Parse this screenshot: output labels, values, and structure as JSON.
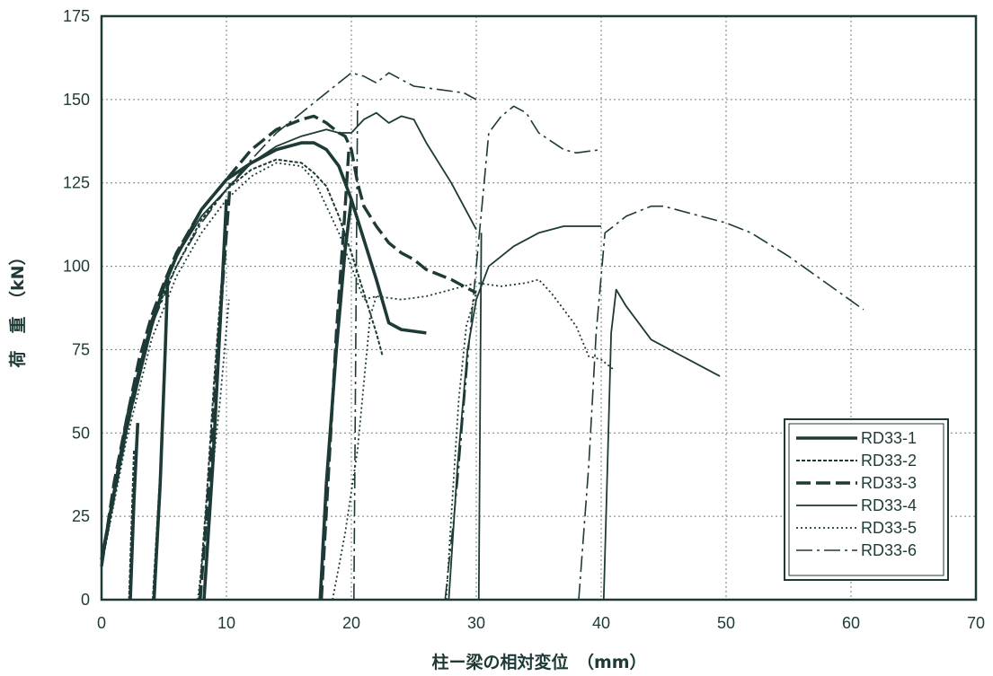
{
  "chart_data": {
    "type": "line",
    "xlabel": "柱ー梁の相対変位　（mm）",
    "ylabel": "荷　重　（kN）",
    "xlim": [
      0,
      70
    ],
    "ylim": [
      0,
      175
    ],
    "x_ticks": [
      "0",
      "10",
      "20",
      "30",
      "40",
      "50",
      "60",
      "70"
    ],
    "y_ticks": [
      "0",
      "25",
      "50",
      "75",
      "100",
      "125",
      "150",
      "175"
    ],
    "grid": true,
    "legend_position": "bottom-right",
    "line_color": "#1d3a36",
    "series": [
      {
        "name": "RD33-1",
        "style": "thick-solid",
        "points": [
          [
            0,
            12
          ],
          [
            1,
            32
          ],
          [
            2,
            52
          ],
          [
            3,
            67
          ],
          [
            4,
            82
          ],
          [
            5,
            94
          ],
          [
            6,
            103
          ],
          [
            8,
            117
          ],
          [
            10,
            126
          ],
          [
            12,
            131
          ],
          [
            14,
            135
          ],
          [
            16,
            137
          ],
          [
            17,
            137
          ],
          [
            18,
            135
          ],
          [
            19,
            130
          ],
          [
            20,
            120
          ],
          [
            21,
            108
          ],
          [
            22,
            96
          ],
          [
            23,
            83
          ],
          [
            24,
            81
          ],
          [
            26,
            80
          ],
          [
            17.5,
            0
          ],
          [
            18,
            35
          ],
          [
            18.8,
            75
          ],
          [
            19.5,
            105
          ],
          [
            20,
            120
          ],
          [
            2.3,
            0
          ],
          [
            2.6,
            30
          ],
          [
            2.9,
            53
          ],
          [
            4.2,
            0
          ],
          [
            4.7,
            35
          ],
          [
            5.1,
            75
          ],
          [
            5.3,
            97
          ],
          [
            8.2,
            0
          ],
          [
            8.9,
            40
          ],
          [
            9.6,
            90
          ],
          [
            10,
            120
          ]
        ]
      },
      {
        "name": "RD33-2",
        "style": "short-dash",
        "points": [
          [
            0,
            10
          ],
          [
            1,
            30
          ],
          [
            2,
            50
          ],
          [
            3,
            68
          ],
          [
            4,
            82
          ],
          [
            5,
            92
          ],
          [
            6,
            100
          ],
          [
            8,
            114
          ],
          [
            10,
            123
          ],
          [
            12,
            129
          ],
          [
            14,
            132
          ],
          [
            16,
            131
          ],
          [
            17,
            128
          ],
          [
            18,
            124
          ],
          [
            19,
            115
          ],
          [
            20,
            104
          ],
          [
            21,
            92
          ],
          [
            22,
            80
          ],
          [
            22.5,
            73
          ],
          [
            7.8,
            0
          ],
          [
            8.4,
            30
          ],
          [
            9,
            65
          ],
          [
            9.6,
            95
          ],
          [
            2.2,
            0
          ],
          [
            2.6,
            45
          ],
          [
            4.1,
            0
          ],
          [
            4.8,
            45
          ],
          [
            5.2,
            82
          ]
        ]
      },
      {
        "name": "RD33-3",
        "style": "long-dash",
        "points": [
          [
            0,
            10
          ],
          [
            1,
            35
          ],
          [
            2,
            54
          ],
          [
            3,
            72
          ],
          [
            4,
            85
          ],
          [
            5,
            95
          ],
          [
            6,
            104
          ],
          [
            8,
            117
          ],
          [
            10,
            126
          ],
          [
            12,
            135
          ],
          [
            14,
            141
          ],
          [
            16,
            144
          ],
          [
            17,
            145
          ],
          [
            18,
            143
          ],
          [
            19,
            140
          ],
          [
            19.5,
            139
          ],
          [
            20,
            135
          ],
          [
            20.5,
            125
          ],
          [
            21,
            118
          ],
          [
            22,
            112
          ],
          [
            23,
            107
          ],
          [
            24,
            104
          ],
          [
            25,
            102
          ],
          [
            26,
            99
          ],
          [
            28,
            96
          ],
          [
            30,
            92
          ],
          [
            17.6,
            0
          ],
          [
            18.2,
            40
          ],
          [
            18.8,
            80
          ],
          [
            19.4,
            112
          ],
          [
            19.8,
            135
          ],
          [
            7.9,
            0
          ],
          [
            8.6,
            35
          ],
          [
            9.3,
            75
          ],
          [
            9.9,
            105
          ],
          [
            10.3,
            125
          ]
        ]
      },
      {
        "name": "RD33-4",
        "style": "solid",
        "points": [
          [
            0,
            12
          ],
          [
            2,
            55
          ],
          [
            4,
            84
          ],
          [
            6,
            103
          ],
          [
            8,
            115
          ],
          [
            10,
            123
          ],
          [
            12,
            131
          ],
          [
            14,
            136
          ],
          [
            16,
            139
          ],
          [
            18,
            141
          ],
          [
            19,
            140
          ],
          [
            20,
            140
          ],
          [
            21,
            144
          ],
          [
            22,
            146
          ],
          [
            23,
            143
          ],
          [
            24,
            145
          ],
          [
            25,
            144
          ],
          [
            26,
            137
          ],
          [
            28,
            125
          ],
          [
            29,
            118
          ],
          [
            30,
            111
          ],
          [
            27.8,
            0
          ],
          [
            28.5,
            40
          ],
          [
            29.3,
            75
          ],
          [
            30,
            90
          ],
          [
            31,
            100
          ],
          [
            33,
            106
          ],
          [
            35,
            110
          ],
          [
            37,
            112
          ],
          [
            40,
            112
          ],
          [
            40.2,
            0
          ],
          [
            40.5,
            40
          ],
          [
            40.8,
            80
          ],
          [
            41.2,
            93
          ],
          [
            42,
            88
          ],
          [
            44,
            78
          ],
          [
            47,
            72
          ],
          [
            49.5,
            67
          ],
          [
            30.2,
            0
          ],
          [
            30.4,
            110
          ]
        ]
      },
      {
        "name": "RD33-5",
        "style": "dotted",
        "points": [
          [
            0,
            10
          ],
          [
            2,
            48
          ],
          [
            4,
            78
          ],
          [
            6,
            97
          ],
          [
            8,
            110
          ],
          [
            10,
            120
          ],
          [
            12,
            127
          ],
          [
            14,
            131
          ],
          [
            16,
            130
          ],
          [
            17,
            126
          ],
          [
            18,
            118
          ],
          [
            19,
            110
          ],
          [
            20,
            100
          ],
          [
            21,
            90
          ],
          [
            22,
            91
          ],
          [
            24,
            90
          ],
          [
            26,
            91
          ],
          [
            28,
            93
          ],
          [
            30,
            95
          ],
          [
            32,
            94
          ],
          [
            34,
            95
          ],
          [
            35,
            96
          ],
          [
            36,
            92
          ],
          [
            38,
            82
          ],
          [
            39,
            73
          ],
          [
            40,
            72
          ],
          [
            41,
            69
          ],
          [
            18.5,
            0
          ],
          [
            19.5,
            20
          ],
          [
            20.5,
            45
          ],
          [
            21.5,
            85
          ],
          [
            22,
            91
          ],
          [
            27.6,
            0
          ],
          [
            28,
            25
          ],
          [
            28.6,
            60
          ],
          [
            29.2,
            82
          ],
          [
            30,
            92
          ],
          [
            7.7,
            0
          ],
          [
            8.5,
            25
          ],
          [
            9.5,
            60
          ],
          [
            10.2,
            90
          ]
        ]
      },
      {
        "name": "RD33-6",
        "style": "dash-dot",
        "points": [
          [
            0,
            10
          ],
          [
            2,
            50
          ],
          [
            4,
            82
          ],
          [
            6,
            100
          ],
          [
            8,
            113
          ],
          [
            10,
            123
          ],
          [
            12,
            132
          ],
          [
            14,
            140
          ],
          [
            16,
            146
          ],
          [
            18,
            152
          ],
          [
            20,
            158
          ],
          [
            21,
            157
          ],
          [
            22,
            155
          ],
          [
            23,
            158
          ],
          [
            24,
            156
          ],
          [
            25,
            154
          ],
          [
            27,
            153
          ],
          [
            29,
            152
          ],
          [
            30,
            150
          ],
          [
            27.5,
            0
          ],
          [
            28.5,
            35
          ],
          [
            29.5,
            80
          ],
          [
            30.5,
            120
          ],
          [
            31,
            140
          ],
          [
            32,
            145
          ],
          [
            33,
            148
          ],
          [
            34,
            146
          ],
          [
            35,
            140
          ],
          [
            37,
            135
          ],
          [
            38,
            134
          ],
          [
            40,
            135
          ],
          [
            38.2,
            0
          ],
          [
            39,
            40
          ],
          [
            39.6,
            80
          ],
          [
            40.3,
            110
          ],
          [
            41,
            112
          ],
          [
            42,
            115
          ],
          [
            44,
            118
          ],
          [
            45,
            118
          ],
          [
            48,
            115
          ],
          [
            50,
            113
          ],
          [
            52,
            110
          ],
          [
            55,
            103
          ],
          [
            58,
            95
          ],
          [
            61,
            87
          ],
          [
            20.2,
            0
          ],
          [
            20.5,
            150
          ]
        ]
      }
    ]
  }
}
